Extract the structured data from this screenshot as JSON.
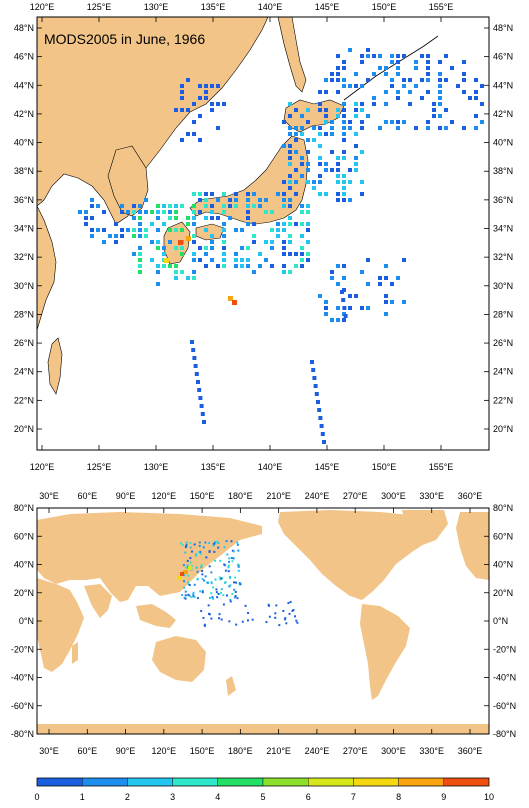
{
  "title": "MODS2005 in June, 1966",
  "colors": {
    "land": "#f2c488",
    "ocean": "#ffffff",
    "frame": "#000000",
    "scale": [
      "#1b5fe0",
      "#1c8ef0",
      "#22c6ee",
      "#2ee6c8",
      "#22e066",
      "#8ce02a",
      "#d6e81c",
      "#f6d812",
      "#f7a410",
      "#ee4e10"
    ]
  },
  "regional": {
    "lon_labels": [
      "120°E",
      "125°E",
      "130°E",
      "135°E",
      "140°E",
      "145°E",
      "150°E",
      "155°E"
    ],
    "lat_labels": [
      "48°N",
      "46°N",
      "44°N",
      "42°N",
      "40°N",
      "38°N",
      "36°N",
      "34°N",
      "32°N",
      "30°N",
      "28°N",
      "26°N",
      "24°N",
      "22°N",
      "20°N"
    ],
    "bounds": {
      "lon": [
        119.5,
        157.5
      ],
      "lat": [
        18.5,
        49.5
      ]
    }
  },
  "global": {
    "lon_labels": [
      "30°E",
      "60°E",
      "90°E",
      "120°E",
      "150°E",
      "180°E",
      "210°E",
      "240°E",
      "270°E",
      "300°E",
      "330°E",
      "360°E"
    ],
    "lat_labels": [
      "80°N",
      "60°N",
      "40°N",
      "20°N",
      "0°N",
      "-20°N",
      "-40°N",
      "-60°N",
      "-80°N"
    ],
    "bounds": {
      "lon": [
        20,
        380
      ],
      "lat": [
        -80,
        80
      ]
    }
  },
  "colorbar": {
    "labels": [
      "0",
      "1",
      "2",
      "3",
      "4",
      "5",
      "6",
      "7",
      "8",
      "9",
      "10"
    ]
  }
}
